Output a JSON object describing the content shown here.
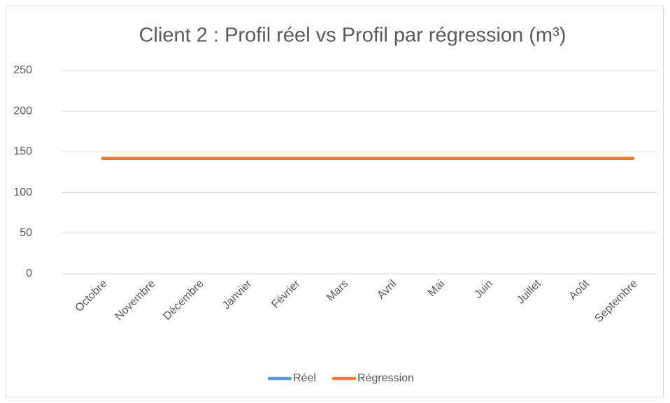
{
  "chart_data": {
    "type": "line",
    "title": "Client 2 : Profil réel vs Profil par régression (m³)",
    "categories": [
      "Octobre",
      "Novembre",
      "Décembre",
      "Janvier",
      "Février",
      "Mars",
      "Avril",
      "Mai",
      "Juin",
      "Juillet",
      "Août",
      "Septembre"
    ],
    "series": [
      {
        "name": "Réel",
        "color": "#5b9bd5",
        "values": [
          142,
          142,
          142,
          142,
          142,
          142,
          142,
          142,
          142,
          142,
          142,
          142
        ]
      },
      {
        "name": "Régression",
        "color": "#ed7d31",
        "values": [
          142,
          142,
          142,
          142,
          142,
          142,
          142,
          142,
          142,
          142,
          142,
          142
        ]
      }
    ],
    "ylim": [
      0,
      250
    ],
    "yticks": [
      0,
      50,
      100,
      150,
      200,
      250
    ],
    "grid": true,
    "legend": "bottom"
  }
}
